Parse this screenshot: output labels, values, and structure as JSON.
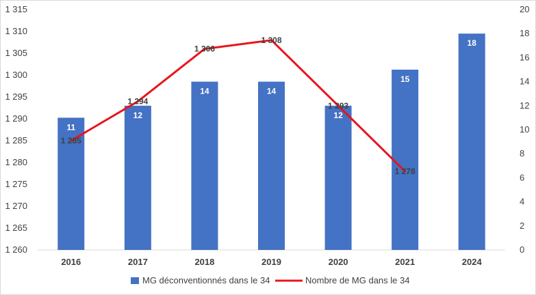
{
  "chart_data": {
    "type": "bar+line",
    "categories": [
      "2016",
      "2017",
      "2018",
      "2019",
      "2020",
      "2021",
      "2024"
    ],
    "series": [
      {
        "name": "MG déconventionnés dans le 34",
        "type": "bar",
        "axis": "right",
        "color": "#4472C4",
        "values": [
          11,
          12,
          14,
          14,
          12,
          15,
          18
        ],
        "labels": [
          "11",
          "12",
          "14",
          "14",
          "12",
          "15",
          "18"
        ]
      },
      {
        "name": "Nombre de MG dans le 34",
        "type": "line",
        "axis": "left",
        "color": "#E8141C",
        "values": [
          1285,
          1294,
          1306,
          1308,
          1293,
          1278,
          null
        ],
        "labels": [
          "1 285",
          "1 294",
          "1 306",
          "1 308",
          "1 293",
          "1 278",
          ""
        ]
      }
    ],
    "left_axis": {
      "ylim": [
        1260,
        1315
      ],
      "ticks": [
        1260,
        1265,
        1270,
        1275,
        1280,
        1285,
        1290,
        1295,
        1300,
        1305,
        1310,
        1315
      ],
      "tick_labels": [
        "1 260",
        "1 265",
        "1 270",
        "1 275",
        "1 280",
        "1 285",
        "1 290",
        "1 295",
        "1 300",
        "1 305",
        "1 310",
        "1 315"
      ]
    },
    "right_axis": {
      "ylim": [
        0,
        20
      ],
      "ticks": [
        0,
        2,
        4,
        6,
        8,
        10,
        12,
        14,
        16,
        18,
        20
      ],
      "tick_labels": [
        "0",
        "2",
        "4",
        "6",
        "8",
        "10",
        "12",
        "14",
        "16",
        "18",
        "20"
      ]
    },
    "grid": false,
    "legend_position": "bottom",
    "title": "",
    "xlabel": "",
    "ylabel": ""
  }
}
